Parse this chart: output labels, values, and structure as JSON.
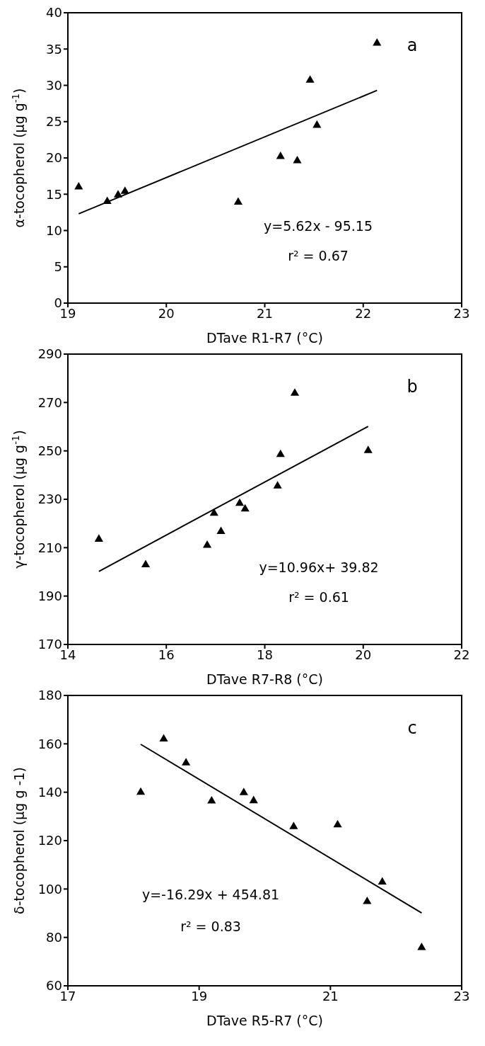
{
  "chart_data": [
    {
      "type": "scatter",
      "xlabel": "DTave R1-R7 (°C)",
      "ylabel": "α-tocopherol (µg g$^{-1}$)",
      "xlim": [
        19,
        23
      ],
      "xticks": [
        19,
        20,
        21,
        22,
        23
      ],
      "ylim": [
        0,
        40
      ],
      "yticks": [
        0,
        5,
        10,
        15,
        20,
        25,
        30,
        35,
        40
      ],
      "annotations": [
        "a",
        "y=5.62x - 95.15",
        "r² = 0.67"
      ],
      "series": [
        {
          "marker": "triangle",
          "color": "#000000",
          "x": [
            19.11,
            19.4,
            19.51,
            19.58,
            20.73,
            21.16,
            21.33,
            21.46,
            21.53,
            22.14
          ],
          "values": [
            16.0,
            14.0,
            14.9,
            15.4,
            13.9,
            20.2,
            19.6,
            30.7,
            24.5,
            35.8
          ]
        },
        {
          "type": "line",
          "marker": "none",
          "line_style": "solid",
          "color": "#000000",
          "x": [
            19.11,
            22.14
          ],
          "values": [
            12.3,
            29.3
          ]
        }
      ]
    },
    {
      "type": "scatter",
      "xlabel": "DTave R7-R8 (°C)",
      "ylabel": "γ-tocopherol (µg g$^{-1}$)",
      "xlim": [
        14,
        22
      ],
      "xticks": [
        14,
        16,
        18,
        20,
        22
      ],
      "ylim": [
        170,
        290
      ],
      "yticks": [
        170,
        190,
        210,
        230,
        250,
        270,
        290
      ],
      "annotations": [
        "b",
        "y=10.96x+ 39.82",
        "r² = 0.61"
      ],
      "series": [
        {
          "marker": "triangle",
          "color": "#000000",
          "x": [
            14.63,
            15.58,
            16.83,
            16.97,
            17.11,
            17.49,
            17.6,
            18.26,
            18.32,
            18.61,
            20.1
          ],
          "values": [
            213.5,
            202.9,
            211.0,
            224.2,
            216.7,
            228.3,
            226.0,
            235.5,
            248.5,
            273.8,
            250.1
          ]
        },
        {
          "type": "line",
          "marker": "none",
          "line_style": "solid",
          "color": "#000000",
          "x": [
            14.63,
            20.1
          ],
          "values": [
            200.2,
            260.1
          ]
        }
      ]
    },
    {
      "type": "scatter",
      "xlabel": "DTave R5-R7 (°C)",
      "ylabel": "δ-tocopherol (µg g -1)",
      "xlim": [
        17,
        23
      ],
      "xticks": [
        17,
        19,
        21,
        23
      ],
      "ylim": [
        60,
        180
      ],
      "yticks": [
        60,
        80,
        100,
        120,
        140,
        160,
        180
      ],
      "annotations": [
        "c",
        "y=-16.29x + 454.81",
        "r² = 0.83"
      ],
      "series": [
        {
          "marker": "triangle",
          "color": "#000000",
          "x": [
            18.11,
            18.46,
            18.8,
            19.19,
            19.68,
            19.83,
            20.44,
            21.11,
            21.56,
            21.79,
            22.39
          ],
          "values": [
            140.0,
            162.0,
            152.1,
            136.4,
            139.8,
            136.5,
            125.8,
            126.5,
            94.8,
            102.9,
            75.8
          ]
        },
        {
          "type": "line",
          "marker": "none",
          "line_style": "solid",
          "color": "#000000",
          "x": [
            18.11,
            22.39
          ],
          "values": [
            159.8,
            90.1
          ]
        }
      ]
    }
  ]
}
